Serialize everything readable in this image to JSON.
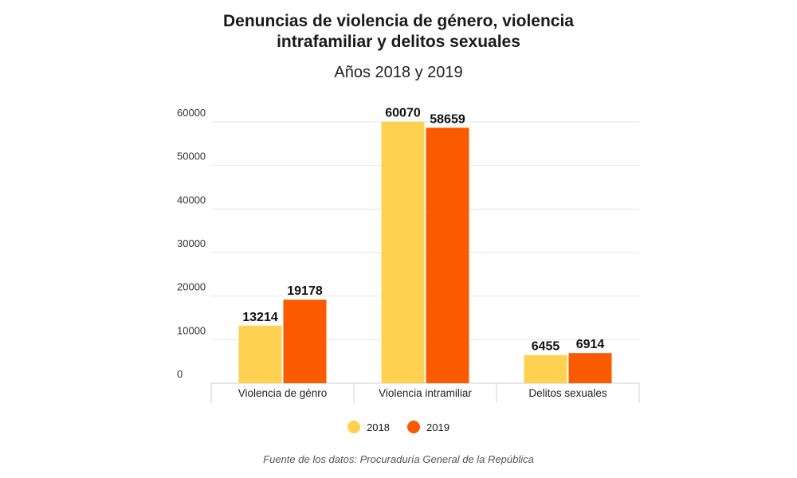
{
  "chart_data": {
    "type": "bar",
    "title_line1": "Denuncias de violencia de género, violencia",
    "title_line2": "intrafamiliar y delitos sexuales",
    "subtitle": "Años 2018 y 2019",
    "categories": [
      "Violencia de génro",
      "Violencia intramiliar",
      "Delitos sexuales"
    ],
    "series": [
      {
        "name": "2018",
        "color": "#FFD150",
        "values": [
          13214,
          60070,
          6455
        ]
      },
      {
        "name": "2019",
        "color": "#FA5A00",
        "values": [
          19178,
          58659,
          6914
        ]
      }
    ],
    "y_ticks": [
      0,
      10000,
      20000,
      30000,
      40000,
      50000,
      60000
    ],
    "ylim": [
      0,
      60000
    ],
    "grid": true,
    "legend": "bottom-center",
    "source": "Fuente de los datos: Procuraduría General de la República"
  }
}
